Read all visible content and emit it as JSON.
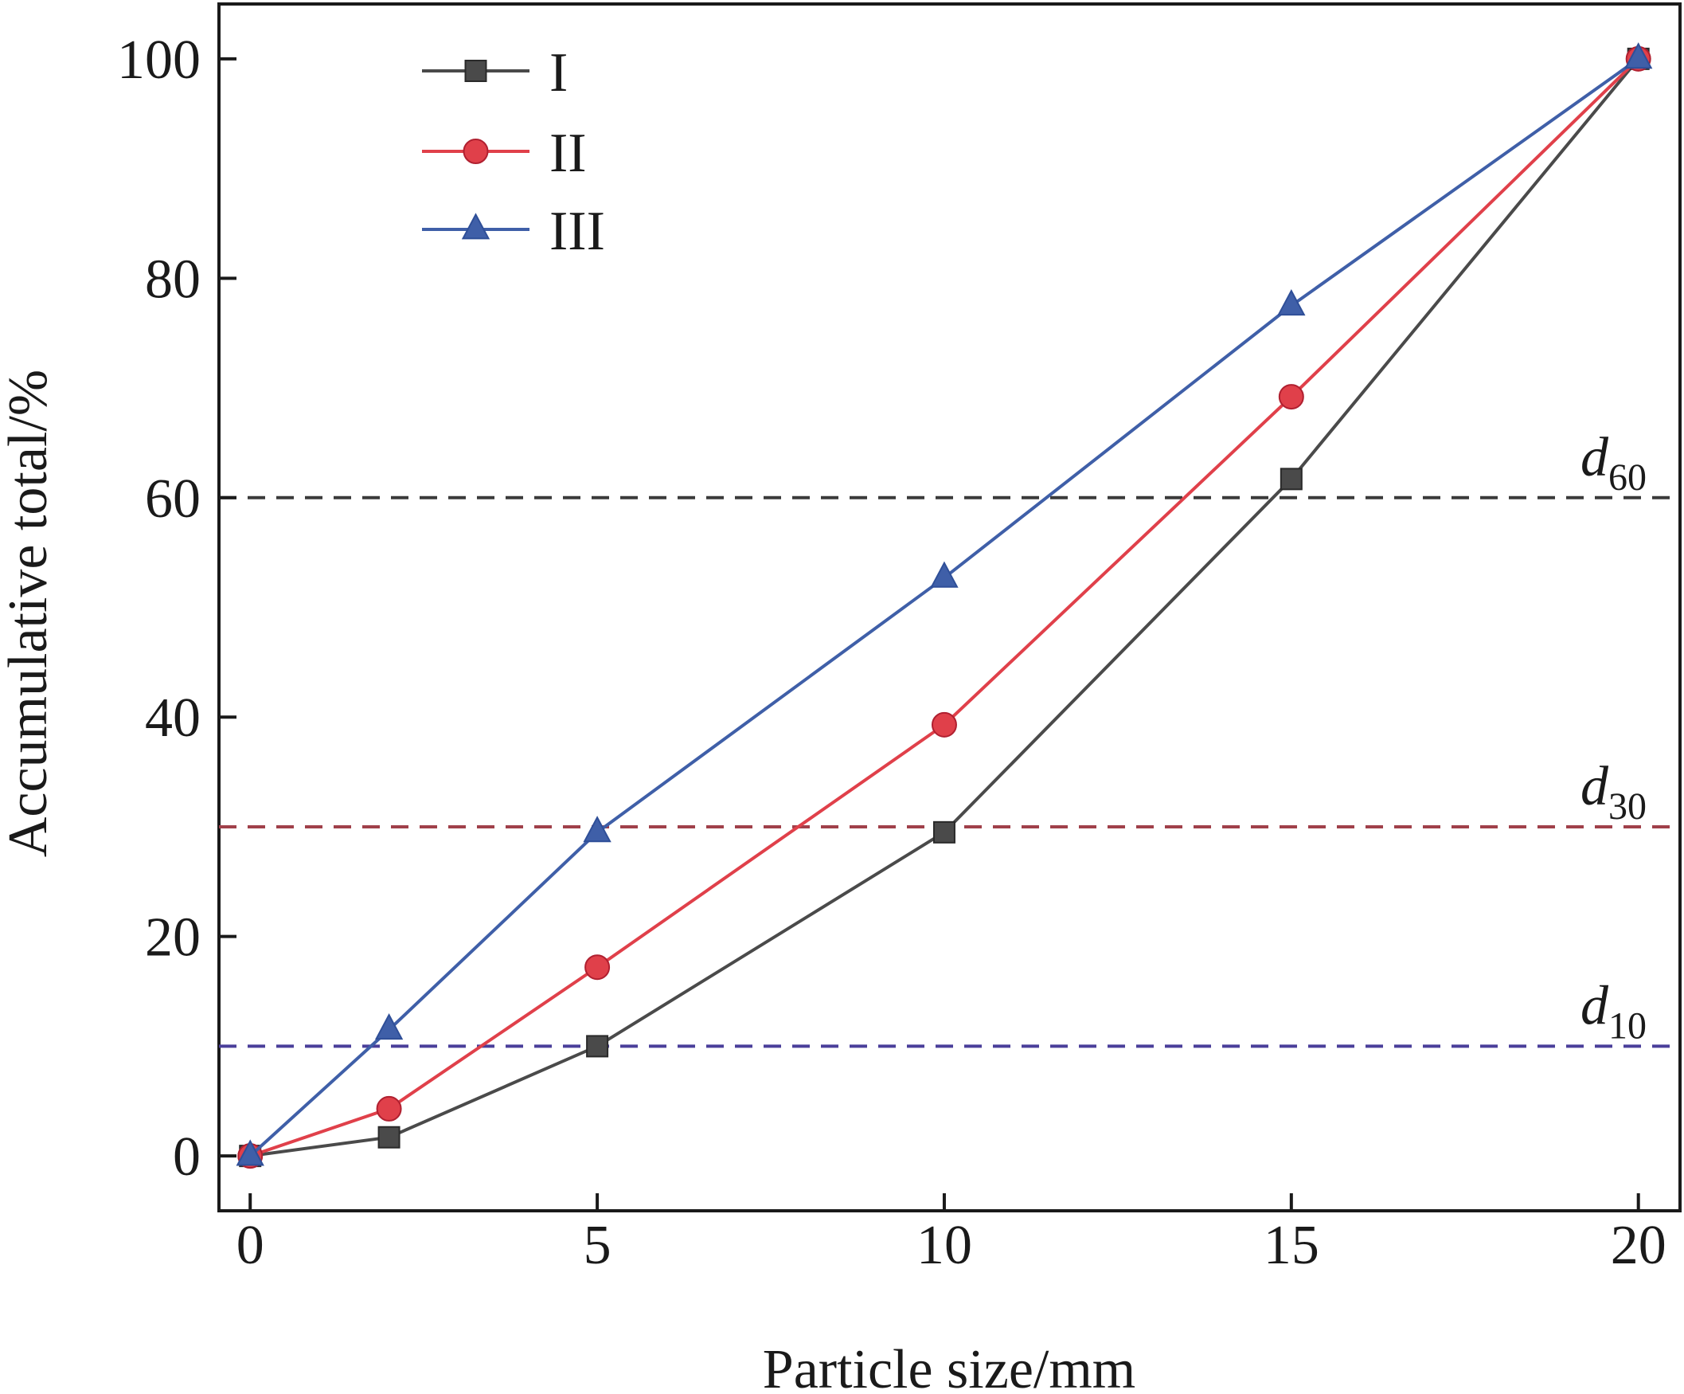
{
  "chart_data": {
    "type": "line",
    "xlabel": "Particle size/mm",
    "ylabel": "Accumulative total/%",
    "xlim": [
      -0.45,
      20.6
    ],
    "ylim": [
      -5,
      105
    ],
    "xticks": [
      0,
      5,
      10,
      15,
      20
    ],
    "yticks": [
      0,
      20,
      40,
      60,
      80,
      100
    ],
    "grid": false,
    "legend_position": "top-left",
    "series": [
      {
        "name": "I",
        "color": "#4a4a4a",
        "marker": "square",
        "x": [
          0,
          2,
          5,
          10,
          15,
          20
        ],
        "y": [
          0,
          1.7,
          10,
          29.5,
          61.7,
          100
        ]
      },
      {
        "name": "II",
        "color": "#e0404a",
        "marker": "circle",
        "x": [
          0,
          2,
          5,
          10,
          15,
          20
        ],
        "y": [
          0,
          4.3,
          17.2,
          39.3,
          69.2,
          100
        ]
      },
      {
        "name": "III",
        "color": "#3f5fa8",
        "marker": "triangle",
        "x": [
          0,
          2,
          5,
          10,
          15,
          20
        ],
        "y": [
          0,
          11.5,
          29.5,
          52.7,
          77.5,
          100
        ]
      }
    ],
    "reference_lines": [
      {
        "y": 60,
        "label_main": "d",
        "label_sub": "60",
        "color": "#3a3a3a"
      },
      {
        "y": 30,
        "label_main": "d",
        "label_sub": "30",
        "color": "#a0404a"
      },
      {
        "y": 10,
        "label_main": "d",
        "label_sub": "10",
        "color": "#4a3f9a"
      }
    ]
  }
}
